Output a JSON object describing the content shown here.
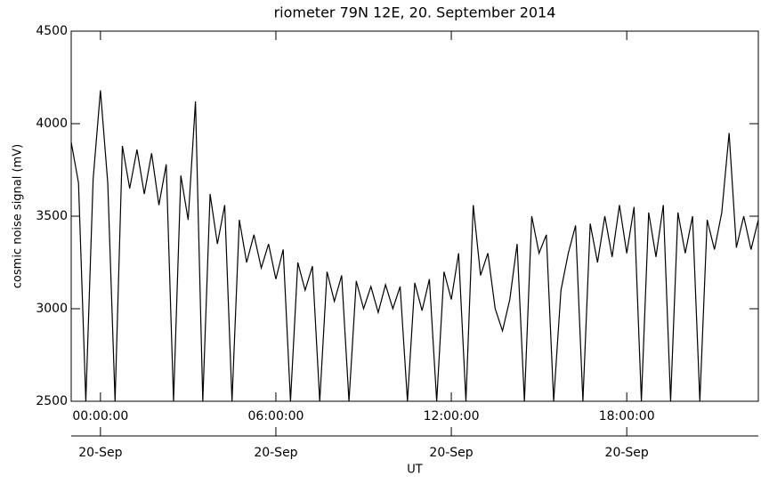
{
  "chart_data": {
    "type": "line",
    "title": "riometer 79N 12E, 20. September 2014",
    "ylabel": "cosmic noise signal (mV)",
    "xlabel": "UT",
    "x": [
      -1,
      -0.75,
      -0.5,
      -0.25,
      0,
      0.25,
      0.5,
      0.75,
      1,
      1.25,
      1.5,
      1.75,
      2,
      2.25,
      2.5,
      2.75,
      3,
      3.25,
      3.5,
      3.75,
      4,
      4.25,
      4.5,
      4.75,
      5,
      5.25,
      5.5,
      5.75,
      6,
      6.25,
      6.5,
      6.75,
      7,
      7.25,
      7.5,
      7.75,
      8,
      8.25,
      8.5,
      8.75,
      9,
      9.25,
      9.5,
      9.75,
      10,
      10.25,
      10.5,
      10.75,
      11,
      11.25,
      11.5,
      11.75,
      12,
      12.25,
      12.5,
      12.75,
      13,
      13.25,
      13.5,
      13.75,
      14,
      14.25,
      14.5,
      14.75,
      15,
      15.25,
      15.5,
      15.75,
      16,
      16.25,
      16.5,
      16.75,
      17,
      17.25,
      17.5,
      17.75,
      18,
      18.25,
      18.5,
      18.75,
      19,
      19.25,
      19.5,
      19.75,
      20,
      20.25,
      20.5,
      20.75,
      21,
      21.25,
      21.5,
      21.75,
      22,
      22.25,
      22.5
    ],
    "series": [
      {
        "color": "#000000",
        "values": [
          3900,
          3680,
          2500,
          3700,
          4180,
          3680,
          2500,
          3880,
          3650,
          3860,
          3620,
          3840,
          3560,
          3780,
          2500,
          3720,
          3480,
          4120,
          2500,
          3620,
          3350,
          3560,
          2500,
          3480,
          3250,
          3400,
          3220,
          3350,
          3160,
          3320,
          2500,
          3250,
          3100,
          3230,
          2500,
          3200,
          3040,
          3180,
          2500,
          3150,
          3000,
          3120,
          2980,
          3130,
          3000,
          3120,
          2500,
          3140,
          2990,
          3160,
          2500,
          3200,
          3050,
          3300,
          2500,
          3560,
          3180,
          3300,
          3000,
          2880,
          3050,
          3350,
          2500,
          3500,
          3300,
          3400,
          2500,
          3100,
          3300,
          3450,
          2500,
          3460,
          3250,
          3500,
          3280,
          3560,
          3300,
          3550,
          2500,
          3520,
          3280,
          3560,
          2500,
          3520,
          3300,
          3500,
          2500,
          3480,
          3320,
          3520,
          3950,
          3330,
          3500,
          3320,
          3480
        ]
      }
    ],
    "xlim": [
      -1,
      22.5
    ],
    "ylim": [
      2500,
      4500
    ],
    "yticks": [
      2500,
      3000,
      3500,
      4000,
      4500
    ],
    "xticks": [
      {
        "value": 0,
        "label": "00:00:00"
      },
      {
        "value": 6,
        "label": "06:00:00"
      },
      {
        "value": 12,
        "label": "12:00:00"
      },
      {
        "value": 18,
        "label": "18:00:00"
      }
    ],
    "x2ticks": [
      {
        "value": 0,
        "label": "20-Sep"
      },
      {
        "value": 6,
        "label": "20-Sep"
      },
      {
        "value": 12,
        "label": "20-Sep"
      },
      {
        "value": 18,
        "label": "20-Sep"
      }
    ]
  }
}
